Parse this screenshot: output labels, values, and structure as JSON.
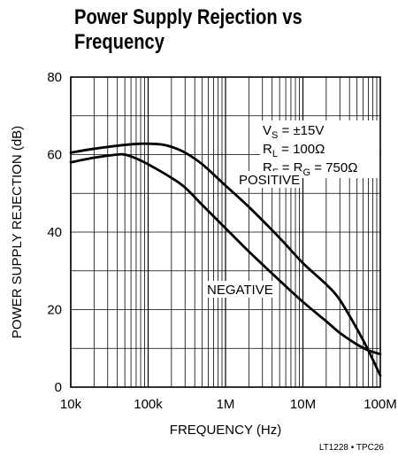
{
  "chart_data": {
    "type": "line",
    "title": "Power Supply Rejection vs Frequency",
    "xlabel": "FREQUENCY (Hz)",
    "ylabel": "POWER SUPPLY REJECTION (dB)",
    "x_scale": "log",
    "xlim": [
      10000,
      100000000
    ],
    "ylim": [
      0,
      80
    ],
    "x_tick_labels": [
      "10k",
      "100k",
      "1M",
      "10M",
      "100M"
    ],
    "x_tick_values": [
      10000,
      100000,
      1000000,
      10000000,
      100000000
    ],
    "y_ticks": [
      0,
      20,
      40,
      60,
      80
    ],
    "grid": true,
    "conditions": {
      "vs": {
        "main": "V",
        "sub": "S",
        "rest": " = ±15V"
      },
      "rl": {
        "main": "R",
        "sub": "L",
        "rest": " = 100Ω"
      },
      "rf": {
        "main": "R",
        "sub": "F",
        "rest": " = R",
        "sub2": "G",
        "rest2": " = 750Ω"
      }
    },
    "series": [
      {
        "name": "POSITIVE",
        "x": [
          10000,
          20000,
          50000,
          80000,
          100000,
          150000,
          200000,
          300000,
          500000,
          1000000,
          2000000,
          5000000,
          10000000,
          20000000,
          30000000,
          50000000,
          70000000,
          100000000
        ],
        "y": [
          60.5,
          61.5,
          62.5,
          62.8,
          62.8,
          62.6,
          62.0,
          60.5,
          57.5,
          52.0,
          46.5,
          38.5,
          32.0,
          26.5,
          22.5,
          15.0,
          9.5,
          3.0
        ]
      },
      {
        "name": "NEGATIVE",
        "x": [
          10000,
          20000,
          40000,
          50000,
          70000,
          100000,
          200000,
          300000,
          500000,
          1000000,
          2000000,
          5000000,
          10000000,
          20000000,
          30000000,
          50000000,
          70000000,
          100000000
        ],
        "y": [
          58.0,
          59.2,
          60.0,
          60.0,
          59.0,
          57.5,
          54.0,
          51.5,
          47.0,
          41.0,
          35.0,
          27.5,
          22.0,
          17.0,
          14.0,
          11.0,
          9.5,
          8.5
        ]
      }
    ]
  },
  "footer_code": "LT1228 • TPC26"
}
